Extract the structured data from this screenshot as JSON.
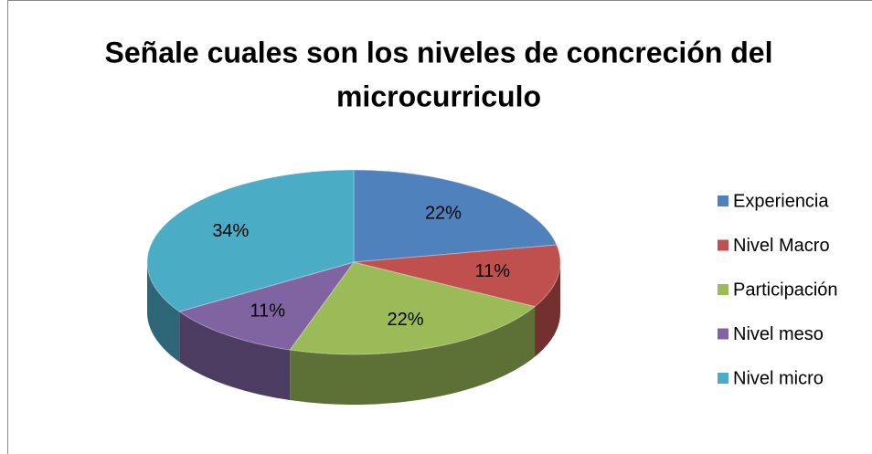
{
  "chart_data": {
    "type": "pie",
    "title": "Señale cuales son los niveles de concreción del microcurriculo",
    "categories": [
      "Experiencia",
      "Nivel Macro",
      "Participación",
      "Nivel meso",
      "Nivel micro"
    ],
    "values": [
      22,
      11,
      22,
      11,
      34
    ],
    "value_labels": [
      "22%",
      "11%",
      "22%",
      "11%",
      "34%"
    ],
    "colors": [
      "#4f81bd",
      "#c0504d",
      "#9bbb59",
      "#8064a2",
      "#4bacc6"
    ],
    "legend": "right"
  }
}
